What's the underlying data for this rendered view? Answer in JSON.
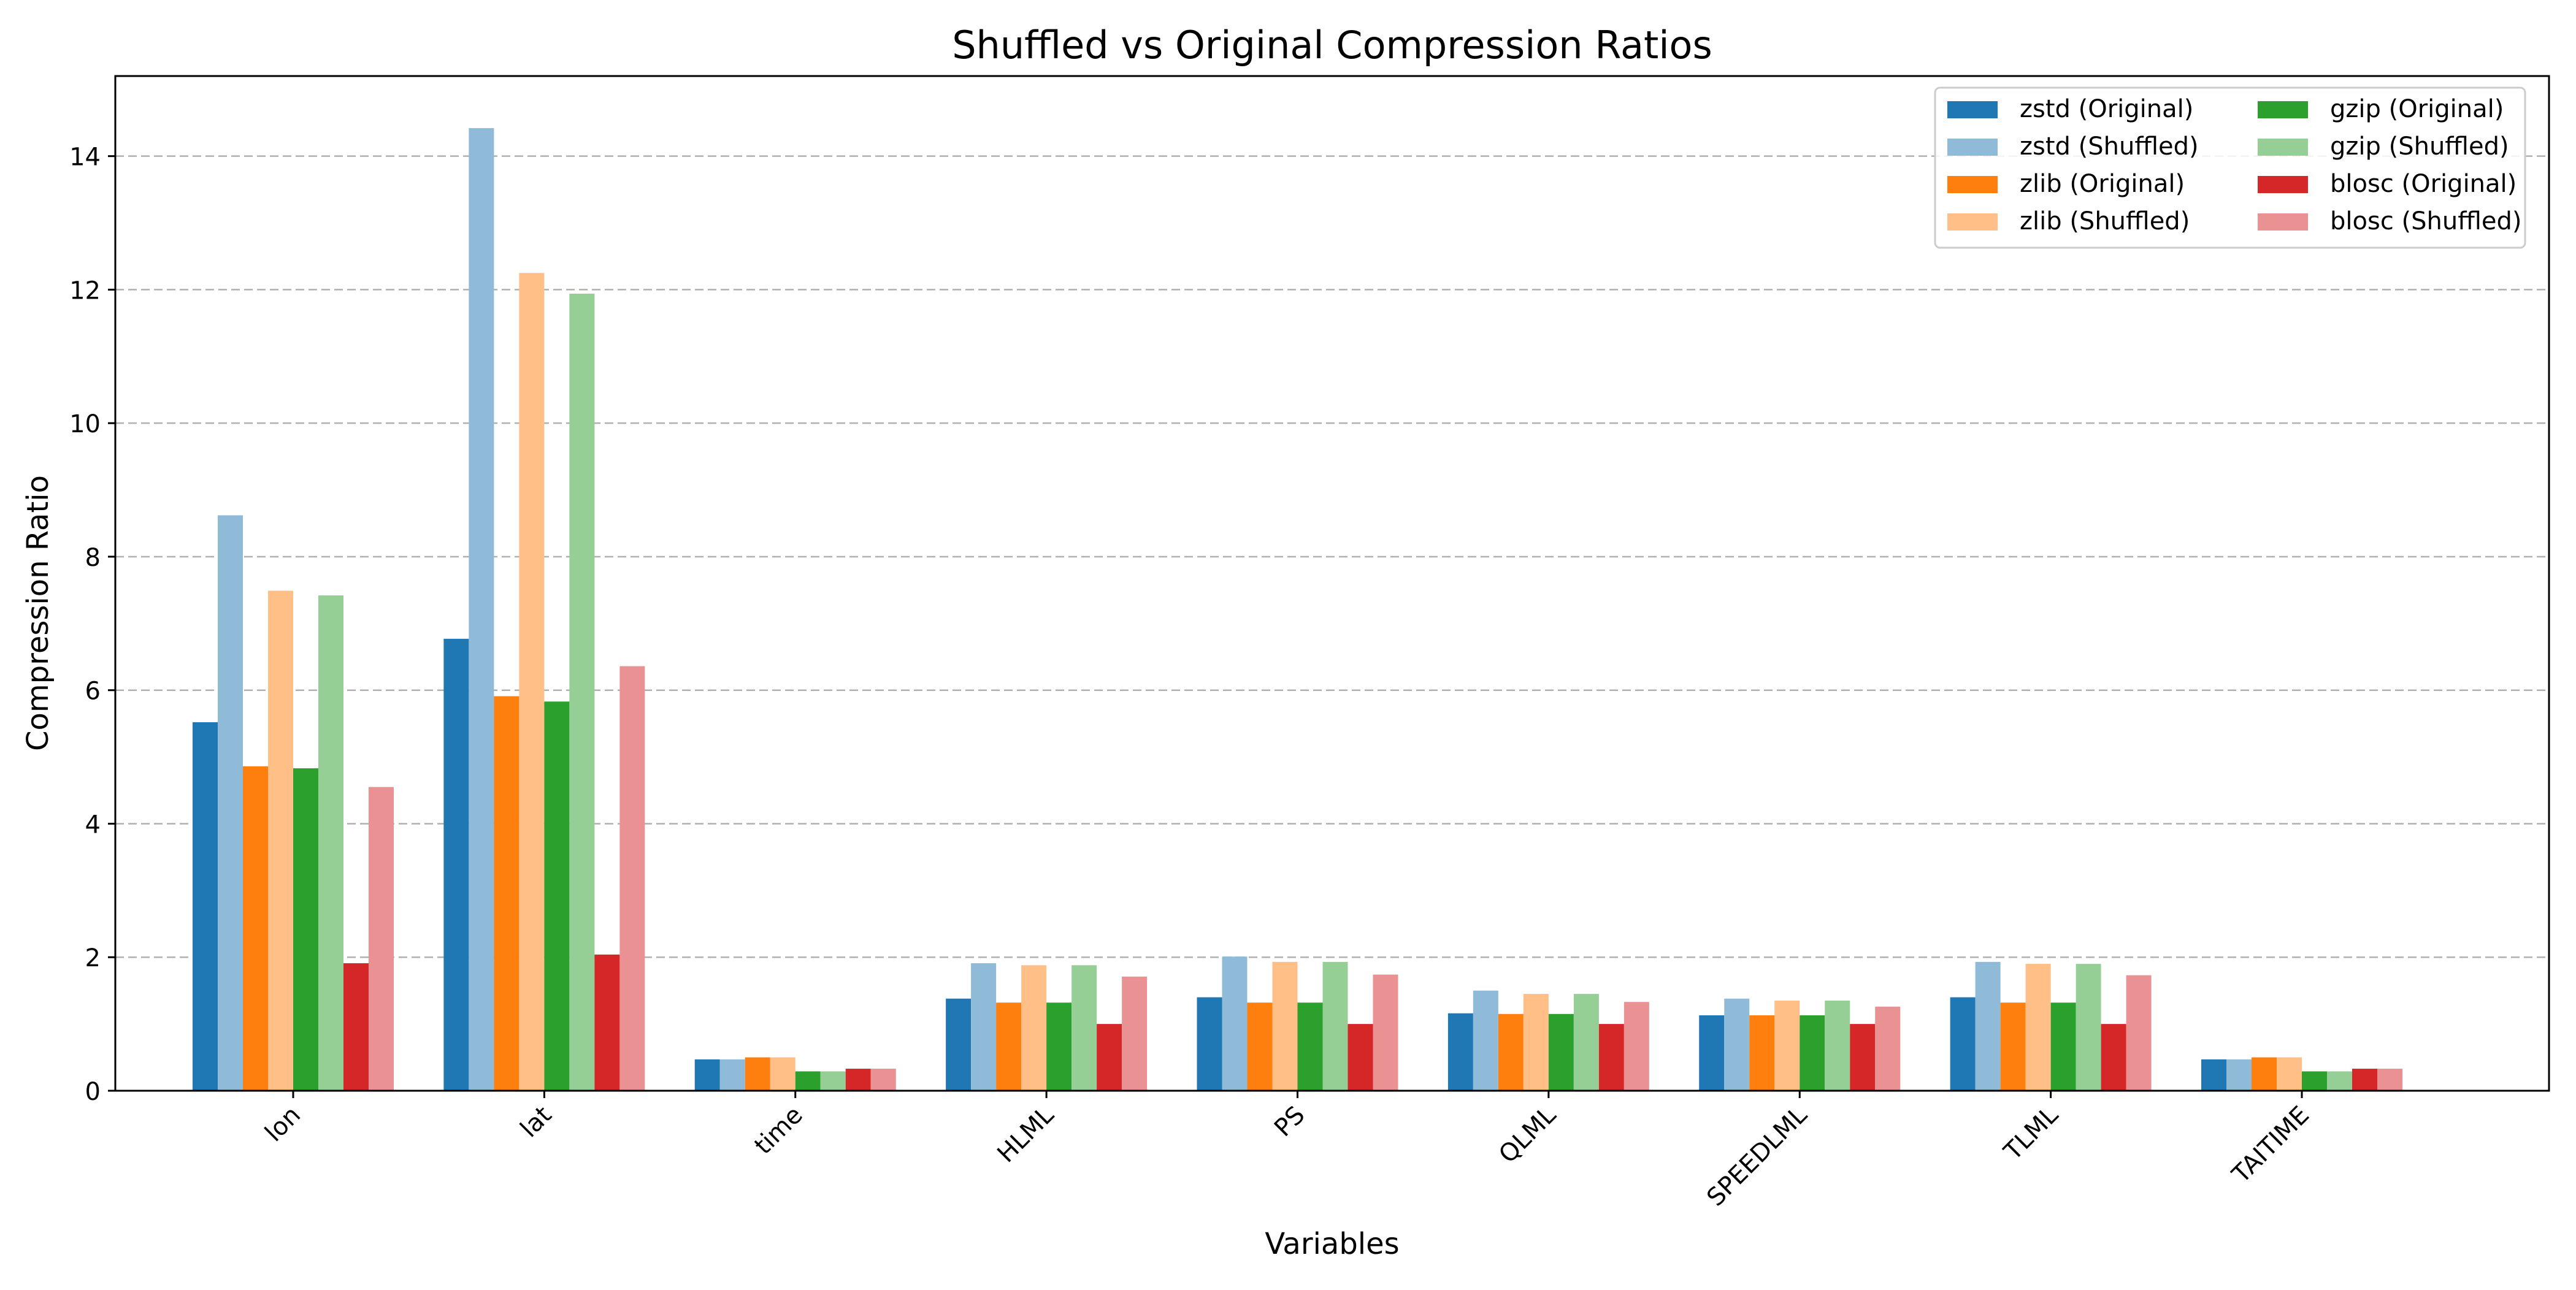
{
  "chart_data": {
    "type": "bar",
    "title": "Shuffled vs Original Compression Ratios",
    "xlabel": "Variables",
    "ylabel": "Compression Ratio",
    "ylim": [
      0,
      15.2
    ],
    "yticks": [
      0,
      2,
      4,
      6,
      8,
      10,
      12,
      14
    ],
    "grid": "y-dashed",
    "legend_position": "top-right",
    "legend_columns": 2,
    "categories": [
      "lon",
      "lat",
      "time",
      "HLML",
      "PS",
      "QLML",
      "SPEEDLML",
      "TLML",
      "TAITIME"
    ],
    "series": [
      {
        "name": "zstd (Original)",
        "color": "#1f77b4",
        "values": [
          5.52,
          6.77,
          0.47,
          1.38,
          1.4,
          1.16,
          1.13,
          1.4,
          0.47
        ]
      },
      {
        "name": "zstd (Shuffled)",
        "color": "#8fbbd9",
        "values": [
          8.62,
          14.42,
          0.47,
          1.91,
          2.01,
          1.5,
          1.38,
          1.93,
          0.47
        ]
      },
      {
        "name": "zlib (Original)",
        "color": "#ff7f0e",
        "values": [
          4.86,
          5.91,
          0.5,
          1.32,
          1.32,
          1.15,
          1.13,
          1.32,
          0.5
        ]
      },
      {
        "name": "zlib (Shuffled)",
        "color": "#ffbf86",
        "values": [
          7.49,
          12.25,
          0.5,
          1.88,
          1.93,
          1.45,
          1.35,
          1.9,
          0.5
        ]
      },
      {
        "name": "gzip (Original)",
        "color": "#2ca02c",
        "values": [
          4.83,
          5.83,
          0.29,
          1.32,
          1.32,
          1.15,
          1.13,
          1.32,
          0.29
        ]
      },
      {
        "name": "gzip (Shuffled)",
        "color": "#95cf95",
        "values": [
          7.42,
          11.94,
          0.29,
          1.88,
          1.93,
          1.45,
          1.35,
          1.9,
          0.29
        ]
      },
      {
        "name": "blosc (Original)",
        "color": "#d62728",
        "values": [
          1.91,
          2.04,
          0.33,
          1.0,
          1.0,
          1.0,
          1.0,
          1.0,
          0.33
        ]
      },
      {
        "name": "blosc (Shuffled)",
        "color": "#ea9293",
        "values": [
          4.55,
          6.36,
          0.33,
          1.71,
          1.74,
          1.33,
          1.26,
          1.73,
          0.33
        ]
      }
    ]
  }
}
